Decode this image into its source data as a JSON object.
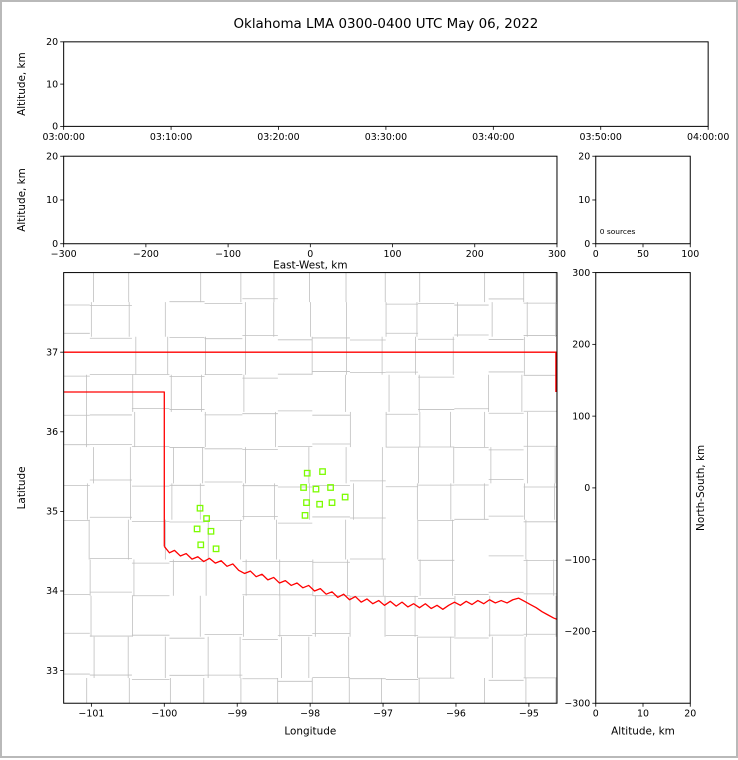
{
  "figure_title": "Oklahoma LMA 0300-0400 UTC May 06, 2022",
  "colors": {
    "station_marker": "#7cfc00",
    "state_border": "#ff0000",
    "county_lines": "#bfbfbf",
    "axes_frame": "#000000",
    "background": "#ffffff"
  },
  "chart_data": [
    {
      "id": "time_height",
      "type": "scatter",
      "xlabel": "",
      "ylabel": "Altitude, km",
      "xlim": [
        0,
        6
      ],
      "xticks": [
        0,
        1,
        2,
        3,
        4,
        5,
        6
      ],
      "xtick_labels": [
        "03:00:00",
        "03:10:00",
        "03:20:00",
        "03:30:00",
        "03:40:00",
        "03:50:00",
        "04:00:00"
      ],
      "ylim": [
        0,
        20
      ],
      "yticks": [
        0,
        10,
        20
      ],
      "ytick_labels": [
        "0",
        "10",
        "20"
      ],
      "points": []
    },
    {
      "id": "ew_height",
      "type": "scatter",
      "xlabel": "East-West, km",
      "ylabel": "Altitude, km",
      "xlim": [
        -300,
        300
      ],
      "xticks": [
        -300,
        -200,
        -100,
        0,
        100,
        200,
        300
      ],
      "xtick_labels": [
        "−300",
        "−200",
        "−100",
        "0",
        "100",
        "200",
        "300"
      ],
      "ylim": [
        0,
        20
      ],
      "yticks": [
        0,
        10,
        20
      ],
      "ytick_labels": [
        "0",
        "10",
        "20"
      ],
      "points": []
    },
    {
      "id": "alt_histogram",
      "type": "line",
      "xlabel": "",
      "ylabel": "",
      "xlim": [
        0,
        100
      ],
      "xticks": [
        0,
        50,
        100
      ],
      "xtick_labels": [
        "0",
        "50",
        "100"
      ],
      "ylim": [
        0,
        20
      ],
      "yticks": [
        0,
        10,
        20
      ],
      "ytick_labels": [
        "0",
        "10",
        "20"
      ],
      "annotation": "0 sources",
      "points": []
    },
    {
      "id": "plan_view",
      "type": "scatter",
      "xlabel": "Longitude",
      "ylabel": "Latitude",
      "xlim": [
        -101.38,
        -94.615
      ],
      "xticks": [
        -101,
        -100,
        -99,
        -98,
        -97,
        -96,
        -95
      ],
      "xtick_labels": [
        "−101",
        "−100",
        "−99",
        "−98",
        "−97",
        "−96",
        "−95"
      ],
      "ylim": [
        32.59,
        38.0
      ],
      "yticks": [
        33,
        34,
        35,
        36,
        37
      ],
      "ytick_labels": [
        "33",
        "34",
        "35",
        "36",
        "37"
      ],
      "points": [],
      "stations": [
        [
          -98.04,
          35.48
        ],
        [
          -97.83,
          35.5
        ],
        [
          -98.09,
          35.3
        ],
        [
          -97.92,
          35.28
        ],
        [
          -97.72,
          35.3
        ],
        [
          -98.05,
          35.11
        ],
        [
          -97.87,
          35.09
        ],
        [
          -97.7,
          35.11
        ],
        [
          -98.07,
          34.95
        ],
        [
          -97.52,
          35.18
        ],
        [
          -99.51,
          35.04
        ],
        [
          -99.42,
          34.91
        ],
        [
          -99.55,
          34.78
        ],
        [
          -99.36,
          34.75
        ],
        [
          -99.5,
          34.58
        ],
        [
          -99.29,
          34.53
        ]
      ],
      "state_border": [
        [
          [
            -101.38,
            37.0
          ],
          [
            -94.615,
            37.0
          ]
        ],
        [
          [
            -101.38,
            36.5
          ],
          [
            -100.0,
            36.5
          ],
          [
            -100.0,
            34.56
          ]
        ],
        [
          [
            -94.63,
            37.0
          ],
          [
            -94.63,
            36.5
          ]
        ]
      ],
      "red_river": [
        [
          -100.0,
          34.56
        ],
        [
          -99.93,
          34.48
        ],
        [
          -99.86,
          34.51
        ],
        [
          -99.78,
          34.44
        ],
        [
          -99.7,
          34.47
        ],
        [
          -99.62,
          34.4
        ],
        [
          -99.54,
          34.43
        ],
        [
          -99.46,
          34.37
        ],
        [
          -99.38,
          34.41
        ],
        [
          -99.3,
          34.35
        ],
        [
          -99.22,
          34.38
        ],
        [
          -99.14,
          34.31
        ],
        [
          -99.06,
          34.34
        ],
        [
          -98.98,
          34.26
        ],
        [
          -98.9,
          34.22
        ],
        [
          -98.82,
          34.25
        ],
        [
          -98.74,
          34.18
        ],
        [
          -98.66,
          34.21
        ],
        [
          -98.58,
          34.14
        ],
        [
          -98.5,
          34.17
        ],
        [
          -98.42,
          34.1
        ],
        [
          -98.34,
          34.13
        ],
        [
          -98.26,
          34.07
        ],
        [
          -98.18,
          34.1
        ],
        [
          -98.1,
          34.04
        ],
        [
          -98.02,
          34.07
        ],
        [
          -97.94,
          34.0
        ],
        [
          -97.86,
          34.03
        ],
        [
          -97.78,
          33.96
        ],
        [
          -97.7,
          33.99
        ],
        [
          -97.62,
          33.92
        ],
        [
          -97.54,
          33.96
        ],
        [
          -97.46,
          33.89
        ],
        [
          -97.38,
          33.93
        ],
        [
          -97.3,
          33.86
        ],
        [
          -97.22,
          33.9
        ],
        [
          -97.14,
          33.84
        ],
        [
          -97.06,
          33.88
        ],
        [
          -96.98,
          33.82
        ],
        [
          -96.9,
          33.87
        ],
        [
          -96.82,
          33.81
        ],
        [
          -96.74,
          33.86
        ],
        [
          -96.66,
          33.8
        ],
        [
          -96.58,
          33.84
        ],
        [
          -96.5,
          33.79
        ],
        [
          -96.42,
          33.84
        ],
        [
          -96.34,
          33.78
        ],
        [
          -96.26,
          33.82
        ],
        [
          -96.18,
          33.77
        ],
        [
          -96.1,
          33.82
        ],
        [
          -96.02,
          33.86
        ],
        [
          -95.94,
          33.82
        ],
        [
          -95.86,
          33.87
        ],
        [
          -95.78,
          33.83
        ],
        [
          -95.7,
          33.88
        ],
        [
          -95.62,
          33.84
        ],
        [
          -95.54,
          33.89
        ],
        [
          -95.46,
          33.85
        ],
        [
          -95.38,
          33.88
        ],
        [
          -95.3,
          33.85
        ],
        [
          -95.22,
          33.89
        ],
        [
          -95.14,
          33.91
        ],
        [
          -95.06,
          33.87
        ],
        [
          -94.98,
          33.83
        ],
        [
          -94.9,
          33.79
        ],
        [
          -94.82,
          33.74
        ],
        [
          -94.74,
          33.7
        ],
        [
          -94.66,
          33.66
        ],
        [
          -94.6,
          33.64
        ]
      ]
    },
    {
      "id": "height_ns",
      "type": "scatter",
      "xlabel": "Altitude, km",
      "ylabel": "North-South, km",
      "xlim": [
        0,
        20
      ],
      "xticks": [
        0,
        10,
        20
      ],
      "xtick_labels": [
        "0",
        "10",
        "20"
      ],
      "ylim": [
        -300,
        300
      ],
      "yticks": [
        -300,
        -200,
        -100,
        0,
        100,
        200,
        300
      ],
      "ytick_labels": [
        "−300",
        "−200",
        "−100",
        "0",
        "100",
        "200",
        "300"
      ],
      "points": []
    }
  ]
}
